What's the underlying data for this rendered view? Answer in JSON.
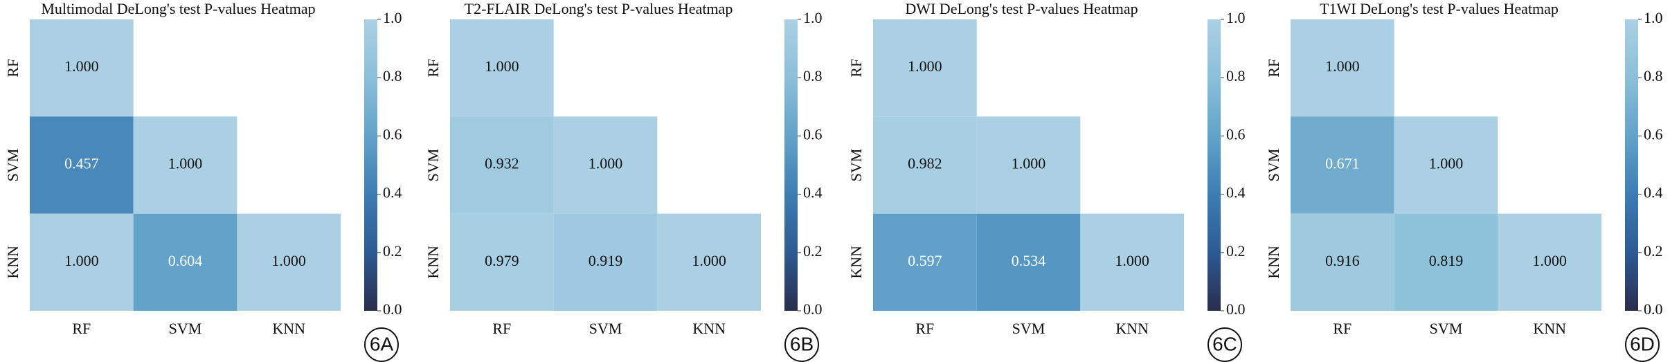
{
  "chart_data": [
    {
      "type": "heatmap",
      "title": "Multimodal DeLong's test P-values Heatmap",
      "panel_label": "6A",
      "x": [
        "RF",
        "SVM",
        "KNN"
      ],
      "y": [
        "RF",
        "SVM",
        "KNN"
      ],
      "values": [
        [
          1.0,
          null,
          null
        ],
        [
          0.457,
          1.0,
          null
        ],
        [
          1.0,
          0.604,
          1.0
        ]
      ],
      "value_labels": [
        [
          "1.000",
          null,
          null
        ],
        [
          "0.457",
          "1.000",
          null
        ],
        [
          "1.000",
          "0.604",
          "1.000"
        ]
      ],
      "clim": [
        0,
        1
      ],
      "cticks": [
        {
          "value": 0,
          "label": "0.0"
        },
        {
          "value": 0.2,
          "label": "0.2"
        },
        {
          "value": 0.4,
          "label": "0.4"
        },
        {
          "value": 0.6,
          "label": "0.6"
        },
        {
          "value": 0.8,
          "label": "0.8"
        },
        {
          "value": 1,
          "label": "1.0"
        }
      ],
      "colorscale": [
        "#2a2d4e",
        "#2d5a94",
        "#3d7db4",
        "#62a2c9",
        "#8bbfd9",
        "#abd0e4"
      ]
    },
    {
      "type": "heatmap",
      "title": "T2-FLAIR DeLong's test P-values Heatmap",
      "panel_label": "6B",
      "x": [
        "RF",
        "SVM",
        "KNN"
      ],
      "y": [
        "RF",
        "SVM",
        "KNN"
      ],
      "values": [
        [
          1.0,
          null,
          null
        ],
        [
          0.932,
          1.0,
          null
        ],
        [
          0.979,
          0.919,
          1.0
        ]
      ],
      "value_labels": [
        [
          "1.000",
          null,
          null
        ],
        [
          "0.932",
          "1.000",
          null
        ],
        [
          "0.979",
          "0.919",
          "1.000"
        ]
      ],
      "clim": [
        0,
        1
      ],
      "cticks": [
        {
          "value": 0,
          "label": "0.0"
        },
        {
          "value": 0.2,
          "label": "0.2"
        },
        {
          "value": 0.4,
          "label": "0.4"
        },
        {
          "value": 0.6,
          "label": "0.6"
        },
        {
          "value": 0.8,
          "label": "0.8"
        },
        {
          "value": 1,
          "label": "1.0"
        }
      ],
      "colorscale": [
        "#2a2d4e",
        "#2d5a94",
        "#3d7db4",
        "#62a2c9",
        "#8bbfd9",
        "#abd0e4"
      ]
    },
    {
      "type": "heatmap",
      "title": "DWI DeLong's test P-values Heatmap",
      "panel_label": "6C",
      "x": [
        "RF",
        "SVM",
        "KNN"
      ],
      "y": [
        "RF",
        "SVM",
        "KNN"
      ],
      "values": [
        [
          1.0,
          null,
          null
        ],
        [
          0.982,
          1.0,
          null
        ],
        [
          0.597,
          0.534,
          1.0
        ]
      ],
      "value_labels": [
        [
          "1.000",
          null,
          null
        ],
        [
          "0.982",
          "1.000",
          null
        ],
        [
          "0.597",
          "0.534",
          "1.000"
        ]
      ],
      "clim": [
        0,
        1
      ],
      "cticks": [
        {
          "value": 0,
          "label": "0.0"
        },
        {
          "value": 0.2,
          "label": "0.2"
        },
        {
          "value": 0.4,
          "label": "0.4"
        },
        {
          "value": 0.6,
          "label": "0.6"
        },
        {
          "value": 0.8,
          "label": "0.8"
        },
        {
          "value": 1,
          "label": "1.0"
        }
      ],
      "colorscale": [
        "#2a2d4e",
        "#2d5a94",
        "#3d7db4",
        "#62a2c9",
        "#8bbfd9",
        "#abd0e4"
      ]
    },
    {
      "type": "heatmap",
      "title": "T1WI DeLong's test P-values Heatmap",
      "panel_label": "6D",
      "x": [
        "RF",
        "SVM",
        "KNN"
      ],
      "y": [
        "RF",
        "SVM",
        "KNN"
      ],
      "values": [
        [
          1.0,
          null,
          null
        ],
        [
          0.671,
          1.0,
          null
        ],
        [
          0.916,
          0.819,
          1.0
        ]
      ],
      "value_labels": [
        [
          "1.000",
          null,
          null
        ],
        [
          "0.671",
          "1.000",
          null
        ],
        [
          "0.916",
          "0.819",
          "1.000"
        ]
      ],
      "clim": [
        0,
        1
      ],
      "cticks": [
        {
          "value": 0,
          "label": "0.0"
        },
        {
          "value": 0.2,
          "label": "0.2"
        },
        {
          "value": 0.4,
          "label": "0.4"
        },
        {
          "value": 0.6,
          "label": "0.6"
        },
        {
          "value": 0.8,
          "label": "0.8"
        },
        {
          "value": 1,
          "label": "1.0"
        }
      ],
      "colorscale": [
        "#2a2d4e",
        "#2d5a94",
        "#3d7db4",
        "#62a2c9",
        "#8bbfd9",
        "#abd0e4"
      ]
    }
  ]
}
